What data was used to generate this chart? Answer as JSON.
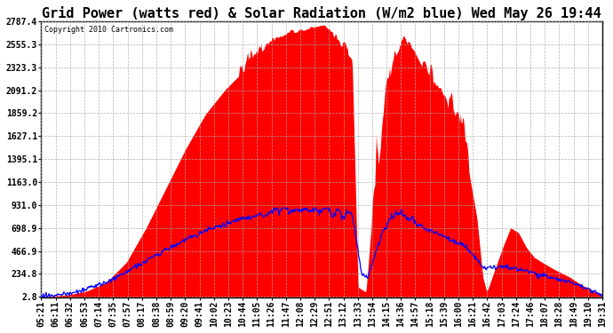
{
  "title": "Grid Power (watts red) & Solar Radiation (W/m2 blue) Wed May 26 19:44",
  "copyright": "Copyright 2010 Cartronics.com",
  "background_color": "#ffffff",
  "plot_bg_color": "#ffffff",
  "grid_color": "#aaaaaa",
  "yticks": [
    2.8,
    234.8,
    466.9,
    698.9,
    931.0,
    1163.0,
    1395.1,
    1627.1,
    1859.2,
    2091.2,
    2323.3,
    2555.3,
    2787.4
  ],
  "ymin": 0,
  "ymax": 2787.4,
  "red_color": "#ff0000",
  "blue_color": "#0000ff",
  "title_fontsize": 11,
  "tick_label_fontsize": 7,
  "x_labels": [
    "05:21",
    "06:11",
    "06:32",
    "06:53",
    "07:14",
    "07:35",
    "07:57",
    "08:17",
    "08:38",
    "08:59",
    "09:20",
    "09:41",
    "10:02",
    "10:23",
    "10:44",
    "11:05",
    "11:26",
    "11:47",
    "12:08",
    "12:29",
    "12:51",
    "13:12",
    "13:33",
    "13:54",
    "14:15",
    "14:36",
    "14:57",
    "15:18",
    "15:39",
    "16:00",
    "16:21",
    "16:42",
    "17:03",
    "17:24",
    "17:46",
    "18:07",
    "18:28",
    "18:49",
    "19:10",
    "19:31"
  ]
}
